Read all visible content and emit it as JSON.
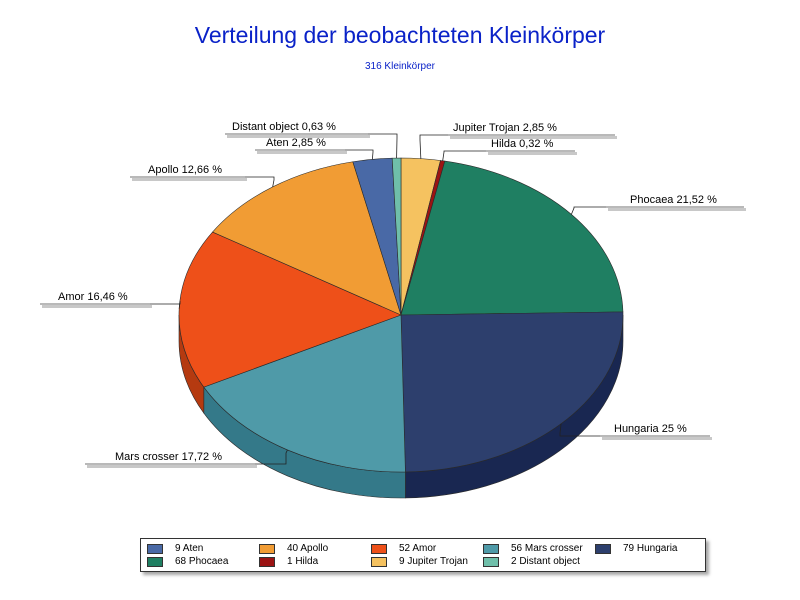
{
  "chart_data": {
    "type": "pie",
    "title": "Verteilung der beobachteten Kleinkörper",
    "subtitle": "316 Kleinkörper",
    "slices": [
      {
        "name": "Jupiter Trojan",
        "count": 9,
        "label": "Jupiter Trojan 2,85 %",
        "legend": "9 Jupiter Trojan",
        "color": "#f5c260",
        "side": "#c8963a"
      },
      {
        "name": "Hilda",
        "count": 1,
        "label": "Hilda 0,32 %",
        "legend": "1 Hilda",
        "color": "#9b1313",
        "side": "#6e0d0d"
      },
      {
        "name": "Phocaea",
        "count": 68,
        "label": "Phocaea 21,52 %",
        "legend": "68 Phocaea",
        "color": "#1f7f62",
        "side": "#145645"
      },
      {
        "name": "Hungaria",
        "count": 79,
        "label": "Hungaria 25 %",
        "legend": "79 Hungaria",
        "color": "#2d3f6d",
        "side": "#192751"
      },
      {
        "name": "Mars crosser",
        "count": 56,
        "label": "Mars crosser 17,72 %",
        "legend": "56 Mars crosser",
        "color": "#4f9aa8",
        "side": "#347989"
      },
      {
        "name": "Amor",
        "count": 52,
        "label": "Amor 16,46 %",
        "legend": "52 Amor",
        "color": "#ee5019",
        "side": "#b53a10"
      },
      {
        "name": "Apollo",
        "count": 40,
        "label": "Apollo 12,66 %",
        "legend": "40 Apollo",
        "color": "#f19c34",
        "side": "#c47720"
      },
      {
        "name": "Aten",
        "count": 9,
        "label": "Aten 2,85 %",
        "legend": "9 Aten",
        "color": "#4969a6",
        "side": "#324d80"
      },
      {
        "name": "Distant object",
        "count": 2,
        "label": "Distant object 0,63 %",
        "legend": "2 Distant object",
        "color": "#6fbfaa",
        "side": "#4e9583"
      }
    ],
    "legend_order": [
      "Aten",
      "Apollo",
      "Amor",
      "Mars crosser",
      "Hungaria",
      "Phocaea",
      "Hilda",
      "Jupiter Trojan",
      "Distant object"
    ],
    "start_angle_deg": -90,
    "direction": "clockwise",
    "legend_position": "bottom"
  }
}
